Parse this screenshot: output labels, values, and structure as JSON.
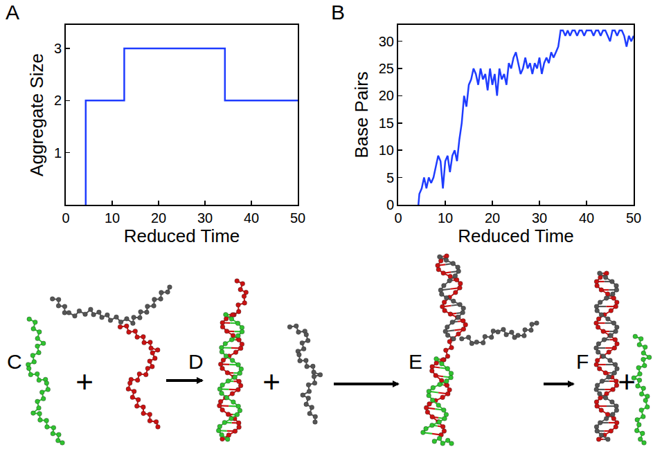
{
  "chart_data": [
    {
      "type": "line",
      "label": "A",
      "x": [
        4.3,
        4.3,
        12.6,
        34.3,
        50
      ],
      "values": [
        0,
        2,
        3,
        2,
        2
      ],
      "line_style": "step",
      "color": "#1e3cff",
      "xlabel": "Reduced Time",
      "ylabel": "Aggregate Size",
      "xlim": [
        0,
        50
      ],
      "ylim": [
        0,
        3.45
      ],
      "xticks": [
        0,
        10,
        20,
        30,
        40,
        50
      ],
      "yticks": [
        1,
        2,
        3
      ],
      "grid": false
    },
    {
      "type": "line",
      "label": "B",
      "x": [
        4.3,
        4.5,
        5,
        5.5,
        6,
        6.5,
        7,
        7.5,
        8,
        8.5,
        9,
        9.5,
        10,
        10.5,
        11,
        11.5,
        12,
        12.5,
        13,
        13.5,
        14,
        14.5,
        15,
        15.5,
        16,
        16.5,
        17,
        17.5,
        18,
        18.5,
        19,
        19.5,
        20,
        20.5,
        21,
        21.5,
        22,
        22.5,
        23,
        23.5,
        24,
        24.5,
        25,
        25.5,
        26,
        26.5,
        27,
        27.5,
        28,
        28.5,
        29,
        29.5,
        30,
        30.5,
        31,
        31.5,
        32,
        32.5,
        33,
        33.5,
        34,
        34.5,
        35,
        35.5,
        36,
        36.5,
        37,
        37.5,
        38,
        38.5,
        39,
        39.5,
        40,
        40.5,
        41,
        41.5,
        42,
        42.5,
        43,
        43.5,
        44,
        44.5,
        45,
        45.5,
        46,
        46.5,
        47,
        47.5,
        48,
        48.5,
        49,
        49.5,
        50
      ],
      "values": [
        0,
        2,
        3,
        5,
        3,
        5,
        4,
        5,
        7,
        9,
        8,
        3,
        8,
        9,
        6,
        9,
        10,
        8,
        12,
        15,
        20,
        18,
        22,
        23,
        25,
        24,
        22,
        25,
        23,
        24,
        21,
        25,
        22,
        24,
        20,
        25,
        23,
        24,
        22,
        26,
        25,
        27,
        28,
        26,
        24,
        25,
        27,
        25,
        26,
        24,
        26,
        25,
        27,
        24,
        26,
        27,
        26,
        28,
        27,
        28,
        29,
        32,
        32,
        31,
        32,
        31,
        32,
        32,
        31,
        32,
        32,
        31,
        32,
        32,
        32,
        31,
        32,
        32,
        31,
        32,
        32,
        31,
        30,
        32,
        32,
        31,
        32,
        32,
        31,
        29,
        31,
        30,
        31
      ],
      "line_style": "solid",
      "color": "#1e3cff",
      "xlabel": "Reduced Time",
      "ylabel": "Base Pairs",
      "xlim": [
        0,
        50
      ],
      "ylim": [
        0,
        33
      ],
      "xticks": [
        0,
        10,
        20,
        30,
        40,
        50
      ],
      "yticks": [
        0,
        5,
        10,
        15,
        20,
        25,
        30
      ],
      "grid": false
    }
  ],
  "diagram": {
    "panels": [
      {
        "label": "C",
        "operator": "+"
      },
      {
        "label": "D",
        "operator": "+"
      },
      {
        "label": "E"
      },
      {
        "label": "F",
        "operator": "+"
      }
    ]
  }
}
